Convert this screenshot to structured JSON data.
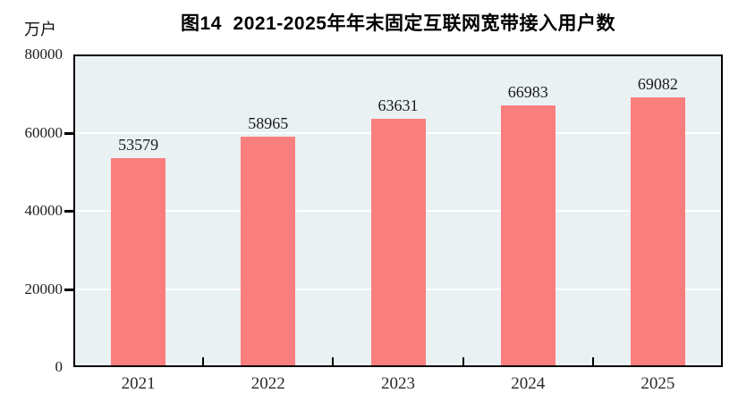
{
  "figure": {
    "title": "图14  2021-2025年年末固定互联网宽带接入用户数",
    "unit_label": "万户"
  },
  "colors": {
    "bar_fill": "#fa7e7e",
    "plot_background": "#eaf1f3",
    "gridline": "#ffffff",
    "axis_border": "#000000",
    "text": "#1b1b1b"
  },
  "chart_data": {
    "type": "bar",
    "title": "图14  2021-2025年年末固定互联网宽带接入用户数",
    "unit": "万户",
    "xlabel": "",
    "ylabel": "万户",
    "categories": [
      "2021",
      "2022",
      "2023",
      "2024",
      "2025"
    ],
    "values": [
      53579,
      58965,
      63631,
      66983,
      69082
    ],
    "value_labels": [
      "53579",
      "58965",
      "63631",
      "66983",
      "69082"
    ],
    "ylim": [
      0,
      80000
    ],
    "yticks": [
      0,
      20000,
      40000,
      60000,
      80000
    ],
    "ytick_labels": [
      "0",
      "20000",
      "40000",
      "60000",
      "80000"
    ],
    "grid": "horizontal-white-at-interior-ticks",
    "legend": "none",
    "bar_color": "#fa7e7e",
    "plot_background": "#eaf1f3"
  }
}
